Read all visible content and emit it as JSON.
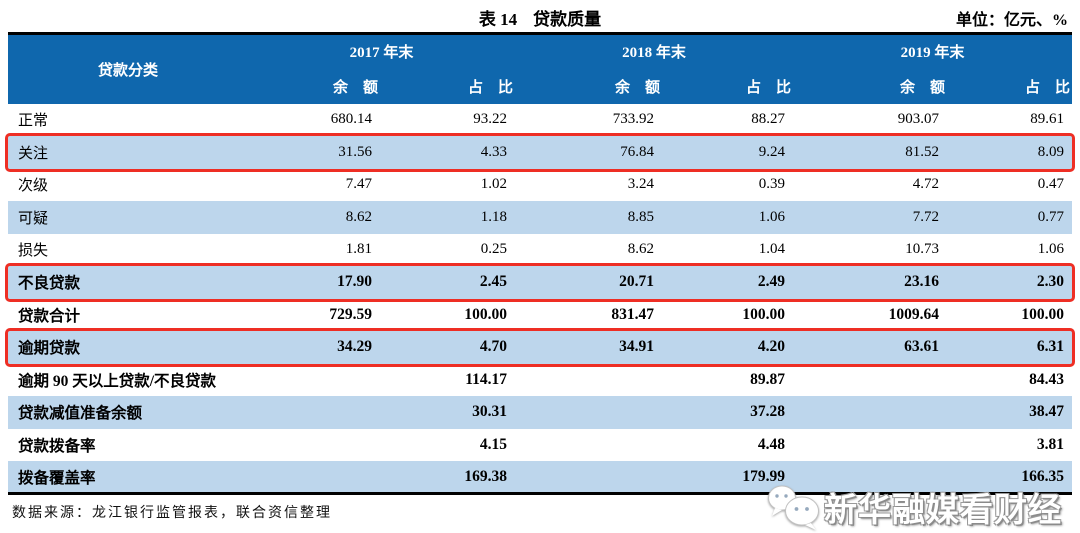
{
  "title": {
    "table_label": "表 14",
    "table_name": "贷款质量",
    "unit": "单位：亿元、%"
  },
  "colors": {
    "header_bg": "#0f67ad",
    "stripe": "#bdd6ec",
    "box_red": "#ee2e24",
    "line_black": "#000000"
  },
  "table": {
    "corner_header": "贷款分类",
    "year_groups": [
      {
        "label": "2017 年末"
      },
      {
        "label": "2018 年末"
      },
      {
        "label": "2019 年末"
      }
    ],
    "sub_headers": {
      "balance": "余　额",
      "share": "占　比"
    },
    "rows": [
      {
        "label": "正常",
        "values": [
          "680.14",
          "93.22",
          "733.92",
          "88.27",
          "903.07",
          "89.61"
        ],
        "bold": false,
        "shaded": false,
        "boxed": false
      },
      {
        "label": "关注",
        "values": [
          "31.56",
          "4.33",
          "76.84",
          "9.24",
          "81.52",
          "8.09"
        ],
        "bold": false,
        "shaded": true,
        "boxed": true
      },
      {
        "label": "次级",
        "values": [
          "7.47",
          "1.02",
          "3.24",
          "0.39",
          "4.72",
          "0.47"
        ],
        "bold": false,
        "shaded": false,
        "boxed": false
      },
      {
        "label": "可疑",
        "values": [
          "8.62",
          "1.18",
          "8.85",
          "1.06",
          "7.72",
          "0.77"
        ],
        "bold": false,
        "shaded": true,
        "boxed": false
      },
      {
        "label": "损失",
        "values": [
          "1.81",
          "0.25",
          "8.62",
          "1.04",
          "10.73",
          "1.06"
        ],
        "bold": false,
        "shaded": false,
        "boxed": false
      },
      {
        "label": "不良贷款",
        "values": [
          "17.90",
          "2.45",
          "20.71",
          "2.49",
          "23.16",
          "2.30"
        ],
        "bold": true,
        "shaded": true,
        "boxed": true
      },
      {
        "label": "贷款合计",
        "values": [
          "729.59",
          "100.00",
          "831.47",
          "100.00",
          "1009.64",
          "100.00"
        ],
        "bold": true,
        "shaded": false,
        "boxed": false
      },
      {
        "label": "逾期贷款",
        "values": [
          "34.29",
          "4.70",
          "34.91",
          "4.20",
          "63.61",
          "6.31"
        ],
        "bold": true,
        "shaded": true,
        "boxed": true
      },
      {
        "label": "逾期 90 天以上贷款/不良贷款",
        "values": [
          "114.17",
          "89.87",
          "84.43"
        ],
        "bold": true,
        "shaded": false,
        "boxed": false
      },
      {
        "label": "贷款减值准备余额",
        "values": [
          "30.31",
          "37.28",
          "38.47"
        ],
        "bold": true,
        "shaded": true,
        "boxed": false
      },
      {
        "label": "贷款拨备率",
        "values": [
          "4.15",
          "4.48",
          "3.81"
        ],
        "bold": true,
        "shaded": false,
        "boxed": false
      },
      {
        "label": "拨备覆盖率",
        "values": [
          "169.38",
          "179.99",
          "166.35"
        ],
        "bold": true,
        "shaded": true,
        "boxed": false
      }
    ],
    "source": "数据来源：龙江银行监管报表，联合资信整理"
  },
  "watermark": {
    "text": "新华融媒看财经"
  }
}
